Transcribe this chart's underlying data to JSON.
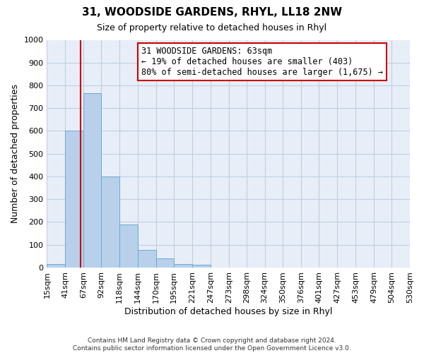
{
  "title": "31, WOODSIDE GARDENS, RHYL, LL18 2NW",
  "subtitle": "Size of property relative to detached houses in Rhyl",
  "xlabel": "Distribution of detached houses by size in Rhyl",
  "ylabel": "Number of detached properties",
  "bin_edges": [
    15,
    41,
    67,
    92,
    118,
    144,
    170,
    195,
    221,
    247,
    273,
    298,
    324,
    350,
    376,
    401,
    427,
    453,
    479,
    504,
    530
  ],
  "bin_labels": [
    "15sqm",
    "41sqm",
    "67sqm",
    "92sqm",
    "118sqm",
    "144sqm",
    "170sqm",
    "195sqm",
    "221sqm",
    "247sqm",
    "273sqm",
    "298sqm",
    "324sqm",
    "350sqm",
    "376sqm",
    "401sqm",
    "427sqm",
    "453sqm",
    "479sqm",
    "504sqm",
    "530sqm"
  ],
  "bar_heights": [
    15,
    600,
    765,
    400,
    190,
    78,
    40,
    15,
    12,
    0,
    0,
    0,
    0,
    0,
    0,
    0,
    0,
    0,
    0,
    0
  ],
  "bar_color": "#b8d0ea",
  "bar_edge_color": "#6aaad4",
  "ylim": [
    0,
    1000
  ],
  "yticks": [
    0,
    100,
    200,
    300,
    400,
    500,
    600,
    700,
    800,
    900,
    1000
  ],
  "property_line_x": 63,
  "property_line_color": "#cc0000",
  "annotation_title": "31 WOODSIDE GARDENS: 63sqm",
  "annotation_line1": "← 19% of detached houses are smaller (403)",
  "annotation_line2": "80% of semi-detached houses are larger (1,675) →",
  "annotation_box_color": "#ffffff",
  "annotation_box_edge": "#cc0000",
  "footer1": "Contains HM Land Registry data © Crown copyright and database right 2024.",
  "footer2": "Contains public sector information licensed under the Open Government Licence v3.0.",
  "background_color": "#ffffff",
  "plot_background": "#e8eef8",
  "grid_color": "#c0cedf"
}
